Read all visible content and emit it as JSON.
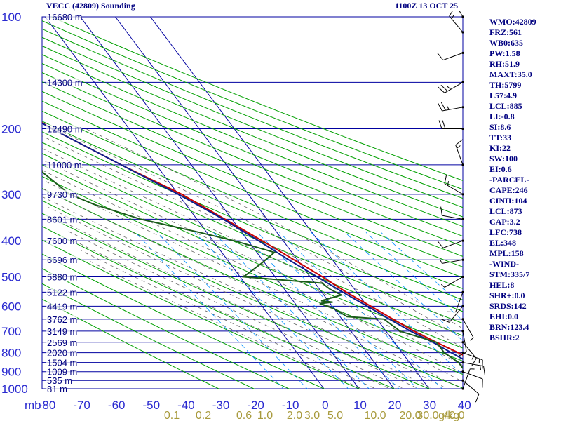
{
  "title": "VECC (42809) Sounding",
  "datetime": "1100Z 13 OCT 25",
  "chart_data": {
    "type": "line",
    "pressure_levels": [
      100,
      200,
      300,
      400,
      500,
      600,
      700,
      800,
      900,
      1000
    ],
    "temperature_ticks": [
      "-80",
      "-70",
      "-60",
      "-50",
      "-40",
      "-30",
      "-20",
      "-10",
      "0",
      "10",
      "20",
      "30",
      "40"
    ],
    "pressure_unit": "mb",
    "height_labels": [
      {
        "p": 100,
        "text": "16680 m"
      },
      {
        "p": 150,
        "text": "14300 m"
      },
      {
        "p": 200,
        "text": "12490 m"
      },
      {
        "p": 250,
        "text": "11000 m"
      },
      {
        "p": 300,
        "text": "9730 m"
      },
      {
        "p": 350,
        "text": "8601 m"
      },
      {
        "p": 400,
        "text": "7600 m"
      },
      {
        "p": 450,
        "text": "6696 m"
      },
      {
        "p": 500,
        "text": "5880 m"
      },
      {
        "p": 550,
        "text": "5122 m"
      },
      {
        "p": 600,
        "text": "4419 m"
      },
      {
        "p": 650,
        "text": "3762 m"
      },
      {
        "p": 700,
        "text": "3149 m"
      },
      {
        "p": 750,
        "text": "2569 m"
      },
      {
        "p": 800,
        "text": "2020 m"
      },
      {
        "p": 850,
        "text": "1504 m"
      },
      {
        "p": 900,
        "text": "1009 m"
      },
      {
        "p": 950,
        "text": "535 m"
      },
      {
        "p": 1000,
        "text": "81 m"
      }
    ],
    "mixing_ratio_labels": [
      "0.1",
      "0.2",
      "0.6",
      "1.0",
      "2.0",
      "3.0",
      "5.0",
      "10.0",
      "20.0",
      "30.0",
      "40.0"
    ],
    "mixing_ratio_unit": "g/kg",
    "series": [
      {
        "color": "#cc0000",
        "points": [
          [
            1000,
            30
          ],
          [
            950,
            24
          ],
          [
            900,
            22
          ],
          [
            850,
            19.5
          ],
          [
            800,
            16
          ],
          [
            750,
            12
          ],
          [
            700,
            8
          ],
          [
            650,
            4.5
          ],
          [
            600,
            1
          ],
          [
            550,
            -3
          ],
          [
            500,
            -6.5
          ],
          [
            450,
            -11
          ],
          [
            400,
            -16
          ],
          [
            350,
            -22
          ],
          [
            300,
            -29
          ],
          [
            250,
            -40
          ],
          [
            200,
            -52
          ],
          [
            150,
            -64
          ],
          [
            100,
            -79
          ]
        ]
      },
      {
        "color": "#0d1f8c",
        "points": [
          [
            1000,
            30
          ],
          [
            950,
            23
          ],
          [
            900,
            19
          ],
          [
            850,
            17
          ],
          [
            800,
            14
          ],
          [
            750,
            11
          ],
          [
            700,
            7
          ],
          [
            650,
            3.5
          ],
          [
            600,
            0
          ],
          [
            550,
            -4
          ],
          [
            500,
            -8
          ],
          [
            450,
            -12.5
          ],
          [
            400,
            -17
          ],
          [
            350,
            -22.5
          ],
          [
            300,
            -30
          ],
          [
            250,
            -40
          ],
          [
            200,
            -52
          ],
          [
            150,
            -66
          ],
          [
            100,
            -88
          ]
        ]
      },
      {
        "color": "#1a5c1a",
        "points": [
          [
            1000,
            22
          ],
          [
            950,
            21
          ],
          [
            920,
            20
          ],
          [
            900,
            17
          ],
          [
            880,
            14
          ],
          [
            850,
            14
          ],
          [
            800,
            12
          ],
          [
            750,
            12
          ],
          [
            700,
            4
          ],
          [
            650,
            2
          ],
          [
            640,
            -8
          ],
          [
            610,
            -10
          ],
          [
            590,
            -13
          ],
          [
            585,
            -9
          ],
          [
            580,
            -12
          ],
          [
            560,
            -5
          ],
          [
            540,
            -7
          ],
          [
            520,
            -8
          ],
          [
            500,
            -29
          ],
          [
            460,
            -21
          ],
          [
            430,
            -15
          ],
          [
            400,
            -24
          ],
          [
            380,
            -32
          ],
          [
            350,
            -46
          ],
          [
            320,
            -56
          ],
          [
            300,
            -61
          ],
          [
            250,
            -65
          ],
          [
            200,
            -71
          ],
          [
            180,
            -76
          ],
          [
            160,
            -80
          ]
        ]
      }
    ]
  },
  "wind_barbs": [
    {
      "p": 100,
      "dir": 330,
      "spd": 30
    },
    {
      "p": 110,
      "dir": 320,
      "spd": 15
    },
    {
      "p": 125,
      "dir": 250,
      "spd": 10
    },
    {
      "p": 150,
      "dir": 240,
      "spd": 25
    },
    {
      "p": 175,
      "dir": 260,
      "spd": 25
    },
    {
      "p": 200,
      "dir": 270,
      "spd": 20
    },
    {
      "p": 250,
      "dir": 340,
      "spd": 15
    },
    {
      "p": 300,
      "dir": 300,
      "spd": 15
    },
    {
      "p": 350,
      "dir": 280,
      "spd": 10
    },
    {
      "p": 400,
      "dir": 250,
      "spd": 10
    },
    {
      "p": 450,
      "dir": 260,
      "spd": 5
    },
    {
      "p": 500,
      "dir": 240,
      "spd": 5
    },
    {
      "p": 550,
      "dir": 200,
      "spd": 10
    },
    {
      "p": 600,
      "dir": 220,
      "spd": 10
    },
    {
      "p": 650,
      "dir": 150,
      "spd": 5
    },
    {
      "p": 700,
      "dir": 170,
      "spd": 10
    },
    {
      "p": 750,
      "dir": 140,
      "spd": 15
    },
    {
      "p": 800,
      "dir": 110,
      "spd": 15
    },
    {
      "p": 850,
      "dir": 100,
      "spd": 15
    },
    {
      "p": 900,
      "dir": 110,
      "spd": 10
    },
    {
      "p": 950,
      "dir": 130,
      "spd": 10
    },
    {
      "p": 1000,
      "dir": 20,
      "spd": 5
    }
  ],
  "indices": [
    "WMO:42809",
    "FRZ:561",
    "WB0:635",
    "PW:1.58",
    "RH:51.9",
    "MAXT:35.0",
    "TH:5799",
    "L57:4.9",
    "LCL:885",
    "LI:-0.8",
    "SI:8.6",
    "TT:33",
    "KI:22",
    "SW:100",
    "EI:0.6",
    "-PARCEL-",
    "CAPE:246",
    "CINH:104",
    "LCL:873",
    "CAP:3.2",
    "LFC:738",
    "EL:348",
    "MPL:158",
    "-WIND-",
    "STM:335/7",
    "HEL:8",
    "SHR+:0.0",
    "SRDS:142",
    "EHI:0.0",
    "BRN:123.4",
    "BSHR:2"
  ],
  "colors": {
    "grid": "#0000a0",
    "dry_adiabat": "#00a000",
    "moist_adiabat": "#606060",
    "mixing_ratio": "#0090ff",
    "label": "#2a2ad0",
    "text": "#000080",
    "mixing_label": "#a89a3c"
  }
}
